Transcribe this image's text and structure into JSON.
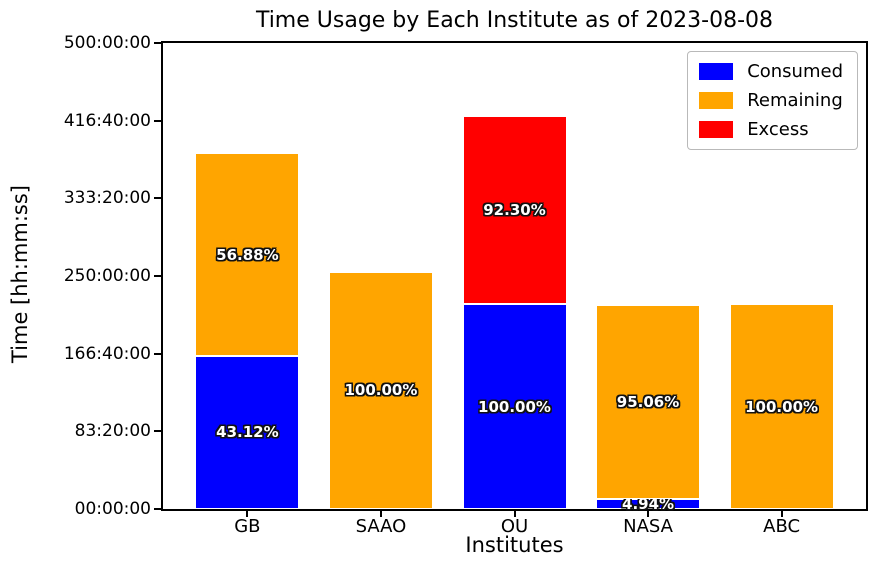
{
  "chart_data": {
    "type": "bar",
    "stacked": true,
    "title": "Time Usage by Each Institute as of 2023-08-08",
    "xlabel": "Institutes",
    "ylabel": "Time [hh:mm:ss]",
    "unit": "hours",
    "ylim": [
      0,
      500
    ],
    "grid": false,
    "yticks": [
      {
        "label": "00:00:00",
        "hours": 0
      },
      {
        "label": "83:20:00",
        "hours": 83.333
      },
      {
        "label": "166:40:00",
        "hours": 166.667
      },
      {
        "label": "250:00:00",
        "hours": 250
      },
      {
        "label": "333:20:00",
        "hours": 333.333
      },
      {
        "label": "416:40:00",
        "hours": 416.667
      },
      {
        "label": "500:00:00",
        "hours": 500
      }
    ],
    "categories": [
      "GB",
      "SAAO",
      "OU",
      "NASA",
      "ABC"
    ],
    "series_colors": {
      "Consumed": "#0000ff",
      "Remaining": "#ffa500",
      "Excess": "#ff0000"
    },
    "legend": {
      "position": "upper right",
      "entries": [
        {
          "label": "Consumed",
          "color": "#0000ff"
        },
        {
          "label": "Remaining",
          "color": "#ffa500"
        },
        {
          "label": "Excess",
          "color": "#ff0000"
        }
      ]
    },
    "bars": [
      {
        "institute": "GB",
        "segments": [
          {
            "series": "Consumed",
            "hours": 164.5,
            "label": "43.12%"
          },
          {
            "series": "Remaining",
            "hours": 217.0,
            "label": "56.88%"
          }
        ]
      },
      {
        "institute": "SAAO",
        "segments": [
          {
            "series": "Remaining",
            "hours": 254.5,
            "label": "100.00%"
          }
        ]
      },
      {
        "institute": "OU",
        "segments": [
          {
            "series": "Consumed",
            "hours": 219.5,
            "label": "100.00%"
          },
          {
            "series": "Excess",
            "hours": 202.5,
            "label": "92.30%"
          }
        ]
      },
      {
        "institute": "NASA",
        "segments": [
          {
            "series": "Consumed",
            "hours": 10.8,
            "label": "4.94%"
          },
          {
            "series": "Remaining",
            "hours": 208.6,
            "label": "95.06%"
          }
        ]
      },
      {
        "institute": "ABC",
        "segments": [
          {
            "series": "Remaining",
            "hours": 219.5,
            "label": "100.00%"
          }
        ]
      }
    ]
  }
}
